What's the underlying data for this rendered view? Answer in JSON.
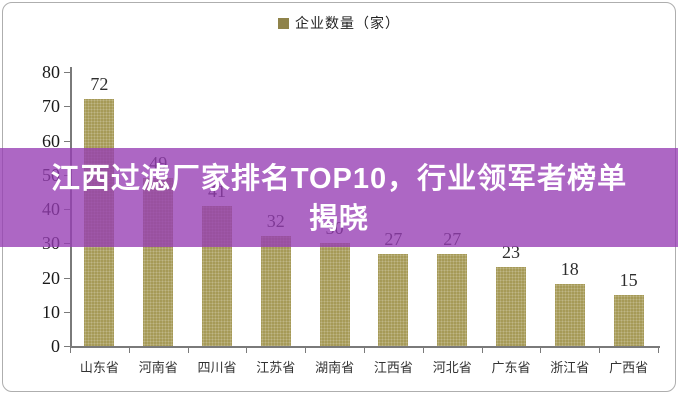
{
  "legend": {
    "label": "企业数量（家）"
  },
  "overlay": {
    "lines": [
      "江西过滤厂家排名TOP10，行业领军者榜单",
      "揭晓"
    ],
    "background": "rgba(150,60,180,0.78)",
    "text_color": "#ffffff"
  },
  "chart_data": {
    "type": "bar",
    "title": "企业数量（家）",
    "categories": [
      "山东省",
      "河南省",
      "四川省",
      "江苏省",
      "湖南省",
      "江西省",
      "河北省",
      "广东省",
      "浙江省",
      "广西省"
    ],
    "values": [
      72,
      49,
      41,
      32,
      30,
      27,
      27,
      23,
      18,
      15
    ],
    "xlabel": "",
    "ylabel": "",
    "ylim": [
      0,
      80
    ],
    "yticks": [
      0,
      10,
      20,
      30,
      40,
      50,
      60,
      70,
      80
    ],
    "grid": false,
    "legend_position": "top",
    "colors": {
      "bar": "#a69a57",
      "legend_marker": "#8f834a",
      "value_label": "#2e2e2e",
      "axis": "#7a7a7a",
      "overlay_bg": "rgba(150,60,180,0.78)"
    }
  }
}
